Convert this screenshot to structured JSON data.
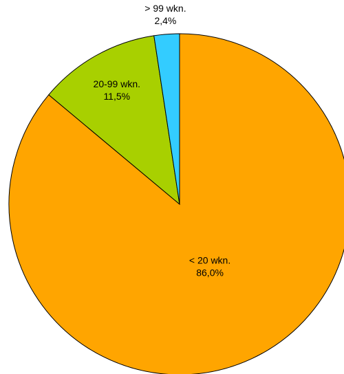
{
  "chart_data": {
    "type": "pie",
    "categories": [
      "< 20 wkn.",
      "20-99 wkn.",
      "> 99 wkn."
    ],
    "values": [
      86.0,
      11.5,
      2.4
    ],
    "value_labels": [
      "86,0%",
      "11,5%",
      "2,4%"
    ],
    "colors": [
      "#ffa500",
      "#a8d000",
      "#33ccff"
    ]
  }
}
